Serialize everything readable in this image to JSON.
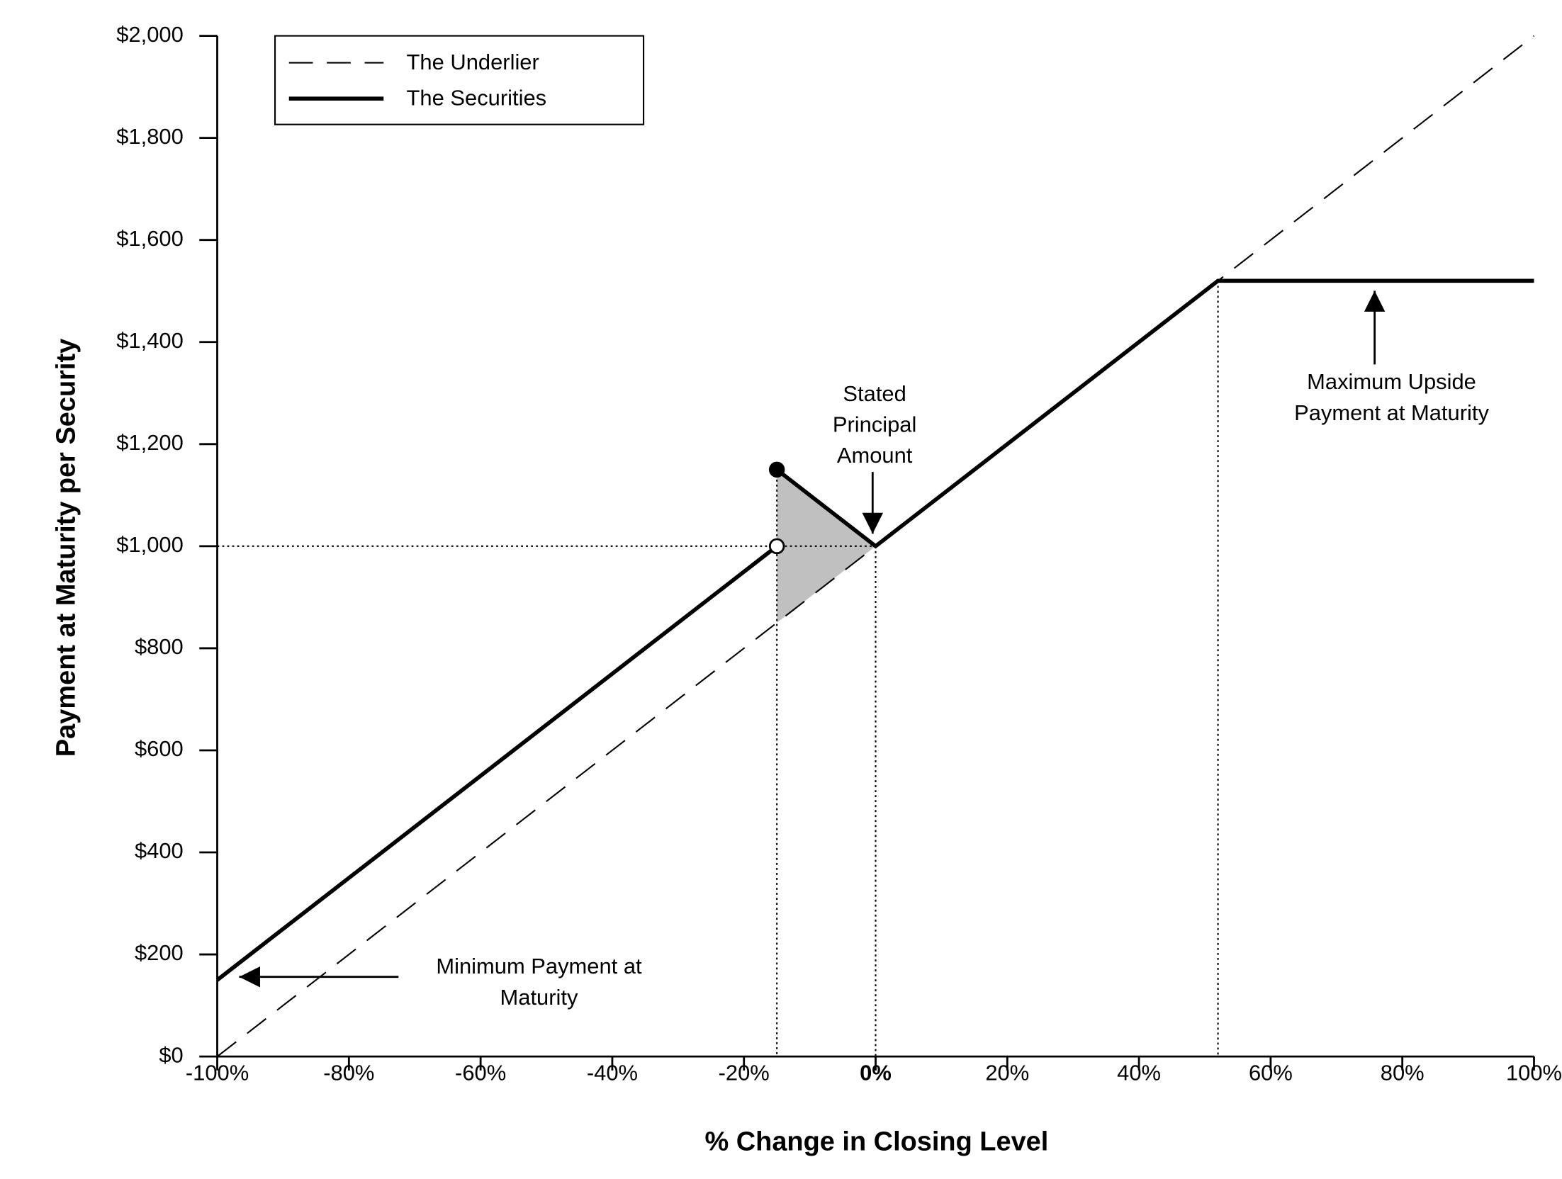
{
  "chart_data": {
    "type": "line",
    "x_label": "% Change in Closing Level",
    "y_label": "Payment at Maturity per Security",
    "xlim": [
      -100,
      100
    ],
    "ylim": [
      0,
      2000
    ],
    "xticks": [
      {
        "value": -100,
        "label": "-100%"
      },
      {
        "value": -80,
        "label": "-80%"
      },
      {
        "value": -60,
        "label": "-60%"
      },
      {
        "value": -40,
        "label": "-40%"
      },
      {
        "value": -20,
        "label": "-20%"
      },
      {
        "value": 0,
        "label": "0%"
      },
      {
        "value": 20,
        "label": "20%"
      },
      {
        "value": 40,
        "label": "40%"
      },
      {
        "value": 60,
        "label": "60%"
      },
      {
        "value": 80,
        "label": "80%"
      },
      {
        "value": 100,
        "label": "100%"
      }
    ],
    "yticks": [
      {
        "value": 0,
        "label": "$0"
      },
      {
        "value": 200,
        "label": "$200"
      },
      {
        "value": 400,
        "label": "$400"
      },
      {
        "value": 600,
        "label": "$600"
      },
      {
        "value": 800,
        "label": "$800"
      },
      {
        "value": 1000,
        "label": "$1,000"
      },
      {
        "value": 1200,
        "label": "$1,200"
      },
      {
        "value": 1400,
        "label": "$1,400"
      },
      {
        "value": 1600,
        "label": "$1,600"
      },
      {
        "value": 1800,
        "label": "$1,800"
      },
      {
        "value": 2000,
        "label": "$2,000"
      }
    ],
    "legend": "upper left",
    "series": [
      {
        "name": "The Underlier",
        "color": "#000000",
        "style": "dashed",
        "x": [
          -100,
          100
        ],
        "values": [
          0,
          2000
        ]
      },
      {
        "name": "The Securities",
        "color": "#000000",
        "style": "solid",
        "x": [
          -100,
          -15,
          null,
          -15,
          0,
          52,
          100
        ],
        "values": [
          150,
          1000,
          null,
          1150,
          1000,
          1520,
          1520
        ]
      }
    ],
    "annotations": [
      {
        "text": [
          "Stated",
          "Principal",
          "Amount"
        ]
      },
      {
        "text": [
          "Maximum Upside",
          "Payment at Maturity"
        ]
      },
      {
        "text": [
          "Minimum Payment at",
          "Maturity"
        ]
      }
    ]
  }
}
